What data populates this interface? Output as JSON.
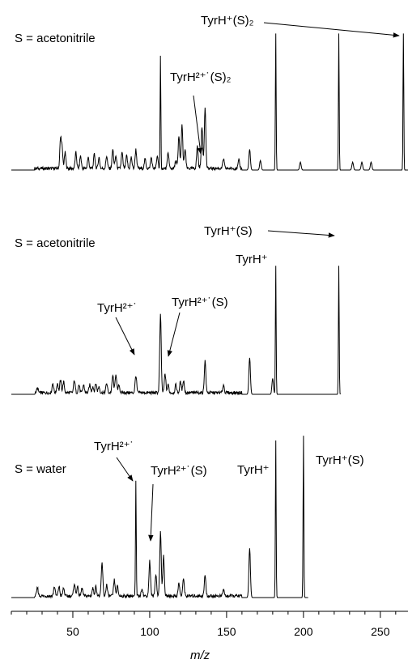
{
  "panels": [
    {
      "title": "S = acetonitrile",
      "annotations": {
        "tyrh_s2": "TyrH⁺(S)₂",
        "tyrh2_s2": "TyrH²⁺˙(S)₂"
      }
    },
    {
      "title": "S = acetonitrile",
      "annotations": {
        "tyrh_s": "TyrH⁺(S)",
        "tyrh": "TyrH⁺",
        "tyrh2": "TyrH²⁺˙",
        "tyrh2_s": "TyrH²⁺˙(S)"
      }
    },
    {
      "title": "S = water",
      "annotations": {
        "tyrh2": "TyrH²⁺˙",
        "tyrh2_s": "TyrH²⁺˙(S)",
        "tyrh": "TyrH⁺",
        "tyrh_s": "TyrH⁺(S)"
      }
    }
  ],
  "chart_data": {
    "type": "line",
    "xlabel": "m/z",
    "xlim": [
      10,
      268
    ],
    "x_ticks": [
      50,
      100,
      150,
      200,
      250
    ],
    "series": [
      {
        "peaks": [
          [
            42,
            0.18
          ],
          [
            43,
            0.12
          ],
          [
            45,
            0.1
          ],
          [
            52,
            0.1
          ],
          [
            55,
            0.08
          ],
          [
            60,
            0.07
          ],
          [
            64,
            0.09
          ],
          [
            67,
            0.07
          ],
          [
            72,
            0.08
          ],
          [
            76,
            0.12
          ],
          [
            78,
            0.08
          ],
          [
            82,
            0.1
          ],
          [
            85,
            0.08
          ],
          [
            88,
            0.07
          ],
          [
            91,
            0.12
          ],
          [
            97,
            0.06
          ],
          [
            101,
            0.07
          ],
          [
            105,
            0.08
          ],
          [
            107,
            0.7
          ],
          [
            112,
            0.1
          ],
          [
            117,
            0.05
          ],
          [
            119,
            0.2
          ],
          [
            121,
            0.27
          ],
          [
            123,
            0.12
          ],
          [
            131,
            0.14
          ],
          [
            134,
            0.26
          ],
          [
            136,
            0.38
          ],
          [
            148,
            0.06
          ],
          [
            158,
            0.05
          ],
          [
            165,
            0.13
          ],
          [
            172,
            0.06
          ],
          [
            182,
            0.86
          ],
          [
            198,
            0.05
          ],
          [
            223,
            0.86
          ],
          [
            232,
            0.05
          ],
          [
            238,
            0.05
          ],
          [
            244,
            0.05
          ],
          [
            265,
            0.86
          ]
        ]
      },
      {
        "peaks": [
          [
            27,
            0.03
          ],
          [
            37,
            0.06
          ],
          [
            40,
            0.06
          ],
          [
            42,
            0.08
          ],
          [
            44,
            0.07
          ],
          [
            51,
            0.08
          ],
          [
            54,
            0.05
          ],
          [
            57,
            0.05
          ],
          [
            61,
            0.05
          ],
          [
            63,
            0.04
          ],
          [
            65,
            0.06
          ],
          [
            67,
            0.04
          ],
          [
            72,
            0.06
          ],
          [
            76,
            0.11
          ],
          [
            78,
            0.12
          ],
          [
            80,
            0.05
          ],
          [
            91,
            0.11
          ],
          [
            107,
            0.49
          ],
          [
            110,
            0.12
          ],
          [
            112,
            0.05
          ],
          [
            117,
            0.05
          ],
          [
            120,
            0.07
          ],
          [
            122,
            0.08
          ],
          [
            136,
            0.2
          ],
          [
            148,
            0.05
          ],
          [
            165,
            0.23
          ],
          [
            180,
            0.1
          ],
          [
            182,
            0.81
          ],
          [
            223,
            0.81
          ]
        ]
      },
      {
        "peaks": [
          [
            27,
            0.05
          ],
          [
            38,
            0.06
          ],
          [
            41,
            0.06
          ],
          [
            44,
            0.05
          ],
          [
            51,
            0.08
          ],
          [
            53,
            0.06
          ],
          [
            56,
            0.05
          ],
          [
            63,
            0.05
          ],
          [
            65,
            0.06
          ],
          [
            69,
            0.21
          ],
          [
            72,
            0.07
          ],
          [
            77,
            0.1
          ],
          [
            79,
            0.06
          ],
          [
            91,
            0.72
          ],
          [
            95,
            0.05
          ],
          [
            100,
            0.22
          ],
          [
            104,
            0.14
          ],
          [
            107,
            0.4
          ],
          [
            109,
            0.25
          ],
          [
            119,
            0.08
          ],
          [
            122,
            0.11
          ],
          [
            136,
            0.13
          ],
          [
            148,
            0.04
          ],
          [
            165,
            0.31
          ],
          [
            182,
            0.99
          ],
          [
            200,
            1.02
          ]
        ]
      }
    ]
  }
}
